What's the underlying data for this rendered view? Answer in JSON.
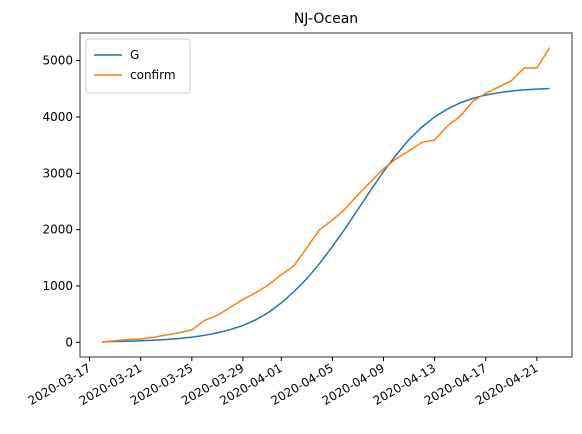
{
  "chart_data": {
    "type": "line",
    "title": "NJ-Ocean",
    "x": [
      "2020-03-18",
      "2020-03-19",
      "2020-03-20",
      "2020-03-21",
      "2020-03-22",
      "2020-03-23",
      "2020-03-24",
      "2020-03-25",
      "2020-03-26",
      "2020-03-27",
      "2020-03-28",
      "2020-03-29",
      "2020-03-30",
      "2020-03-31",
      "2020-04-01",
      "2020-04-02",
      "2020-04-03",
      "2020-04-04",
      "2020-04-05",
      "2020-04-06",
      "2020-04-07",
      "2020-04-08",
      "2020-04-09",
      "2020-04-10",
      "2020-04-11",
      "2020-04-12",
      "2020-04-13",
      "2020-04-14",
      "2020-04-15",
      "2020-04-16",
      "2020-04-17",
      "2020-04-18",
      "2020-04-19",
      "2020-04-20",
      "2020-04-21",
      "2020-04-22"
    ],
    "series": [
      {
        "name": "G",
        "color": "#1f77b4",
        "values": [
          10,
          15,
          20,
          28,
          38,
          50,
          68,
          92,
          125,
          168,
          225,
          300,
          400,
          530,
          700,
          900,
          1130,
          1400,
          1700,
          2020,
          2360,
          2700,
          3030,
          3330,
          3600,
          3820,
          4000,
          4140,
          4250,
          4330,
          4390,
          4430,
          4460,
          4480,
          4495,
          4505
        ]
      },
      {
        "name": "confirm",
        "color": "#ff7f0e",
        "values": [
          5,
          30,
          50,
          60,
          90,
          130,
          170,
          220,
          390,
          480,
          620,
          760,
          880,
          1020,
          1200,
          1360,
          1680,
          2000,
          2170,
          2370,
          2620,
          2850,
          3080,
          3260,
          3400,
          3550,
          3590,
          3840,
          4010,
          4280,
          4420,
          4530,
          4640,
          4870,
          4870,
          5230
        ]
      }
    ],
    "xticks": [
      "2020-03-17",
      "2020-03-21",
      "2020-03-25",
      "2020-03-29",
      "2020-04-01",
      "2020-04-05",
      "2020-04-09",
      "2020-04-13",
      "2020-04-17",
      "2020-04-21"
    ],
    "ylim": [
      -260,
      5490
    ],
    "yticks": [
      0,
      1000,
      2000,
      3000,
      4000,
      5000
    ],
    "grid": false,
    "legend": "upper left"
  }
}
